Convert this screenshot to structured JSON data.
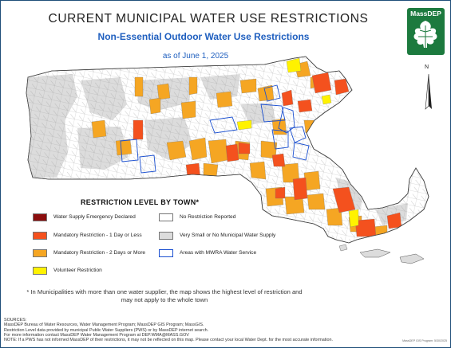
{
  "title": "CURRENT MUNICIPAL WATER USE RESTRICTIONS",
  "subtitle": "Non-Essential Outdoor Water Use Restrictions",
  "date": "as of June 1, 2025",
  "logo_text": "MassDEP",
  "north_label": "N",
  "legend": {
    "title": "RESTRICTION LEVEL BY TOWN*",
    "items": [
      {
        "label": "Water Supply Emergency Declared",
        "color": "#8b0e0e"
      },
      {
        "label": "Mandatory Restriction - 1 Day or Less",
        "color": "#f4511e"
      },
      {
        "label": "Mandatory Restriction - 2 Days or More",
        "color": "#f5a623"
      },
      {
        "label": "Volunteer Restriction",
        "color": "#fff200"
      },
      {
        "label": "No Restriction Reported",
        "color": "#ffffff"
      },
      {
        "label": "Very Small or No Municipal Water Supply",
        "color": "#dcdcdc"
      },
      {
        "label": "Areas with MWRA Water Service",
        "color": "#1a4fd0"
      }
    ]
  },
  "footnote": "* In Municipalities with more than one water supplier, the map shows the highest level of restriction and may not apply to the whole town",
  "sources": [
    "SOURCES:",
    "MassDEP Bureau of Water Resources, Water Management Program; MassDEP GIS Program; MassGIS.",
    "Restriction Level data provided by municipal Public Water Suppliers (PWS) or by MassDEP internet search.",
    "For more information contact MassDEP Water Management Program at DEP.WMA@MASS.GOV",
    "NOTE: If a PWS has not informed MassDEP of their restrictions, it may not be reflected on this map. Please contact your local Water Dept. for the most accurate information."
  ],
  "credit": "MassDEP GIS Program: 5/30/2025",
  "colors": {
    "state_fill": "#ffffff",
    "small_supply": "#dcdcdc",
    "mandatory_1day": "#f4511e",
    "mandatory_2day": "#f5a623",
    "volunteer": "#fff200",
    "mwra": "#1a4fd0",
    "brand_green": "#1c7a3e"
  }
}
